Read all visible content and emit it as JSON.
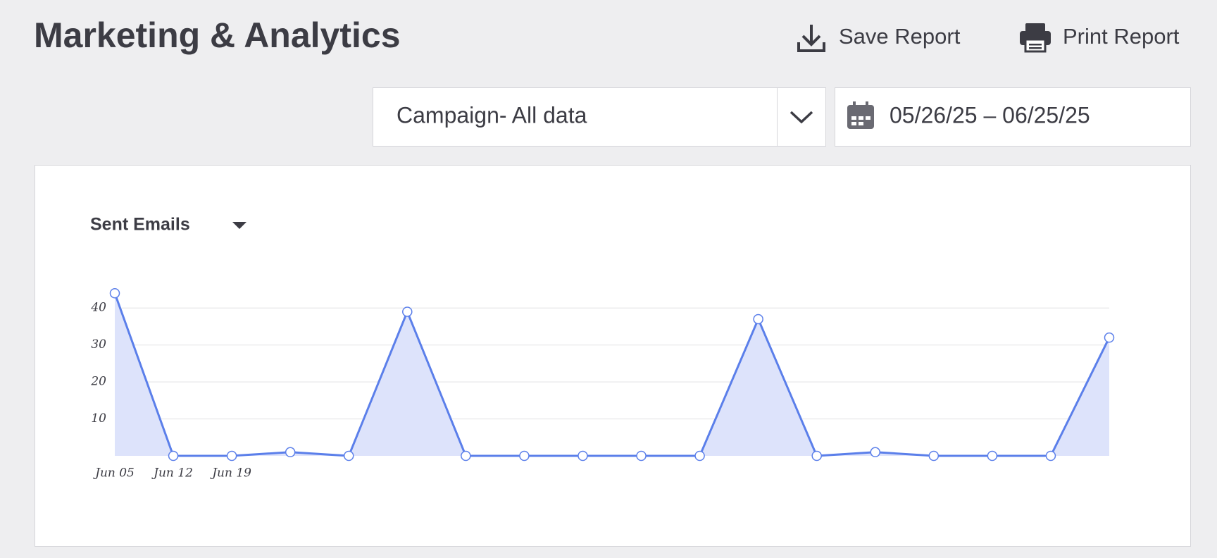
{
  "header": {
    "title": "Marketing & Analytics",
    "actions": [
      "Save Report",
      "Print Report"
    ]
  },
  "filters": {
    "campaign": "Campaign- All data",
    "date_range": "05/26/25 – 06/25/25"
  },
  "chart_data": {
    "type": "line",
    "title": "Sent Emails",
    "categories": [
      "Jun 05",
      "Jun 12",
      "Jun 19",
      null,
      null,
      null,
      null,
      null,
      null,
      null,
      null,
      null,
      null,
      null,
      null,
      null,
      null,
      null
    ],
    "values": [
      44,
      0,
      0,
      1,
      0,
      39,
      0,
      0,
      0,
      0,
      0,
      37,
      0,
      1,
      0,
      0,
      0,
      32
    ],
    "color": "#5b7fea",
    "fill": "#dde3fb",
    "ylim": [
      0,
      45
    ],
    "yticks": [
      10,
      20,
      30,
      40
    ],
    "grid": true
  }
}
